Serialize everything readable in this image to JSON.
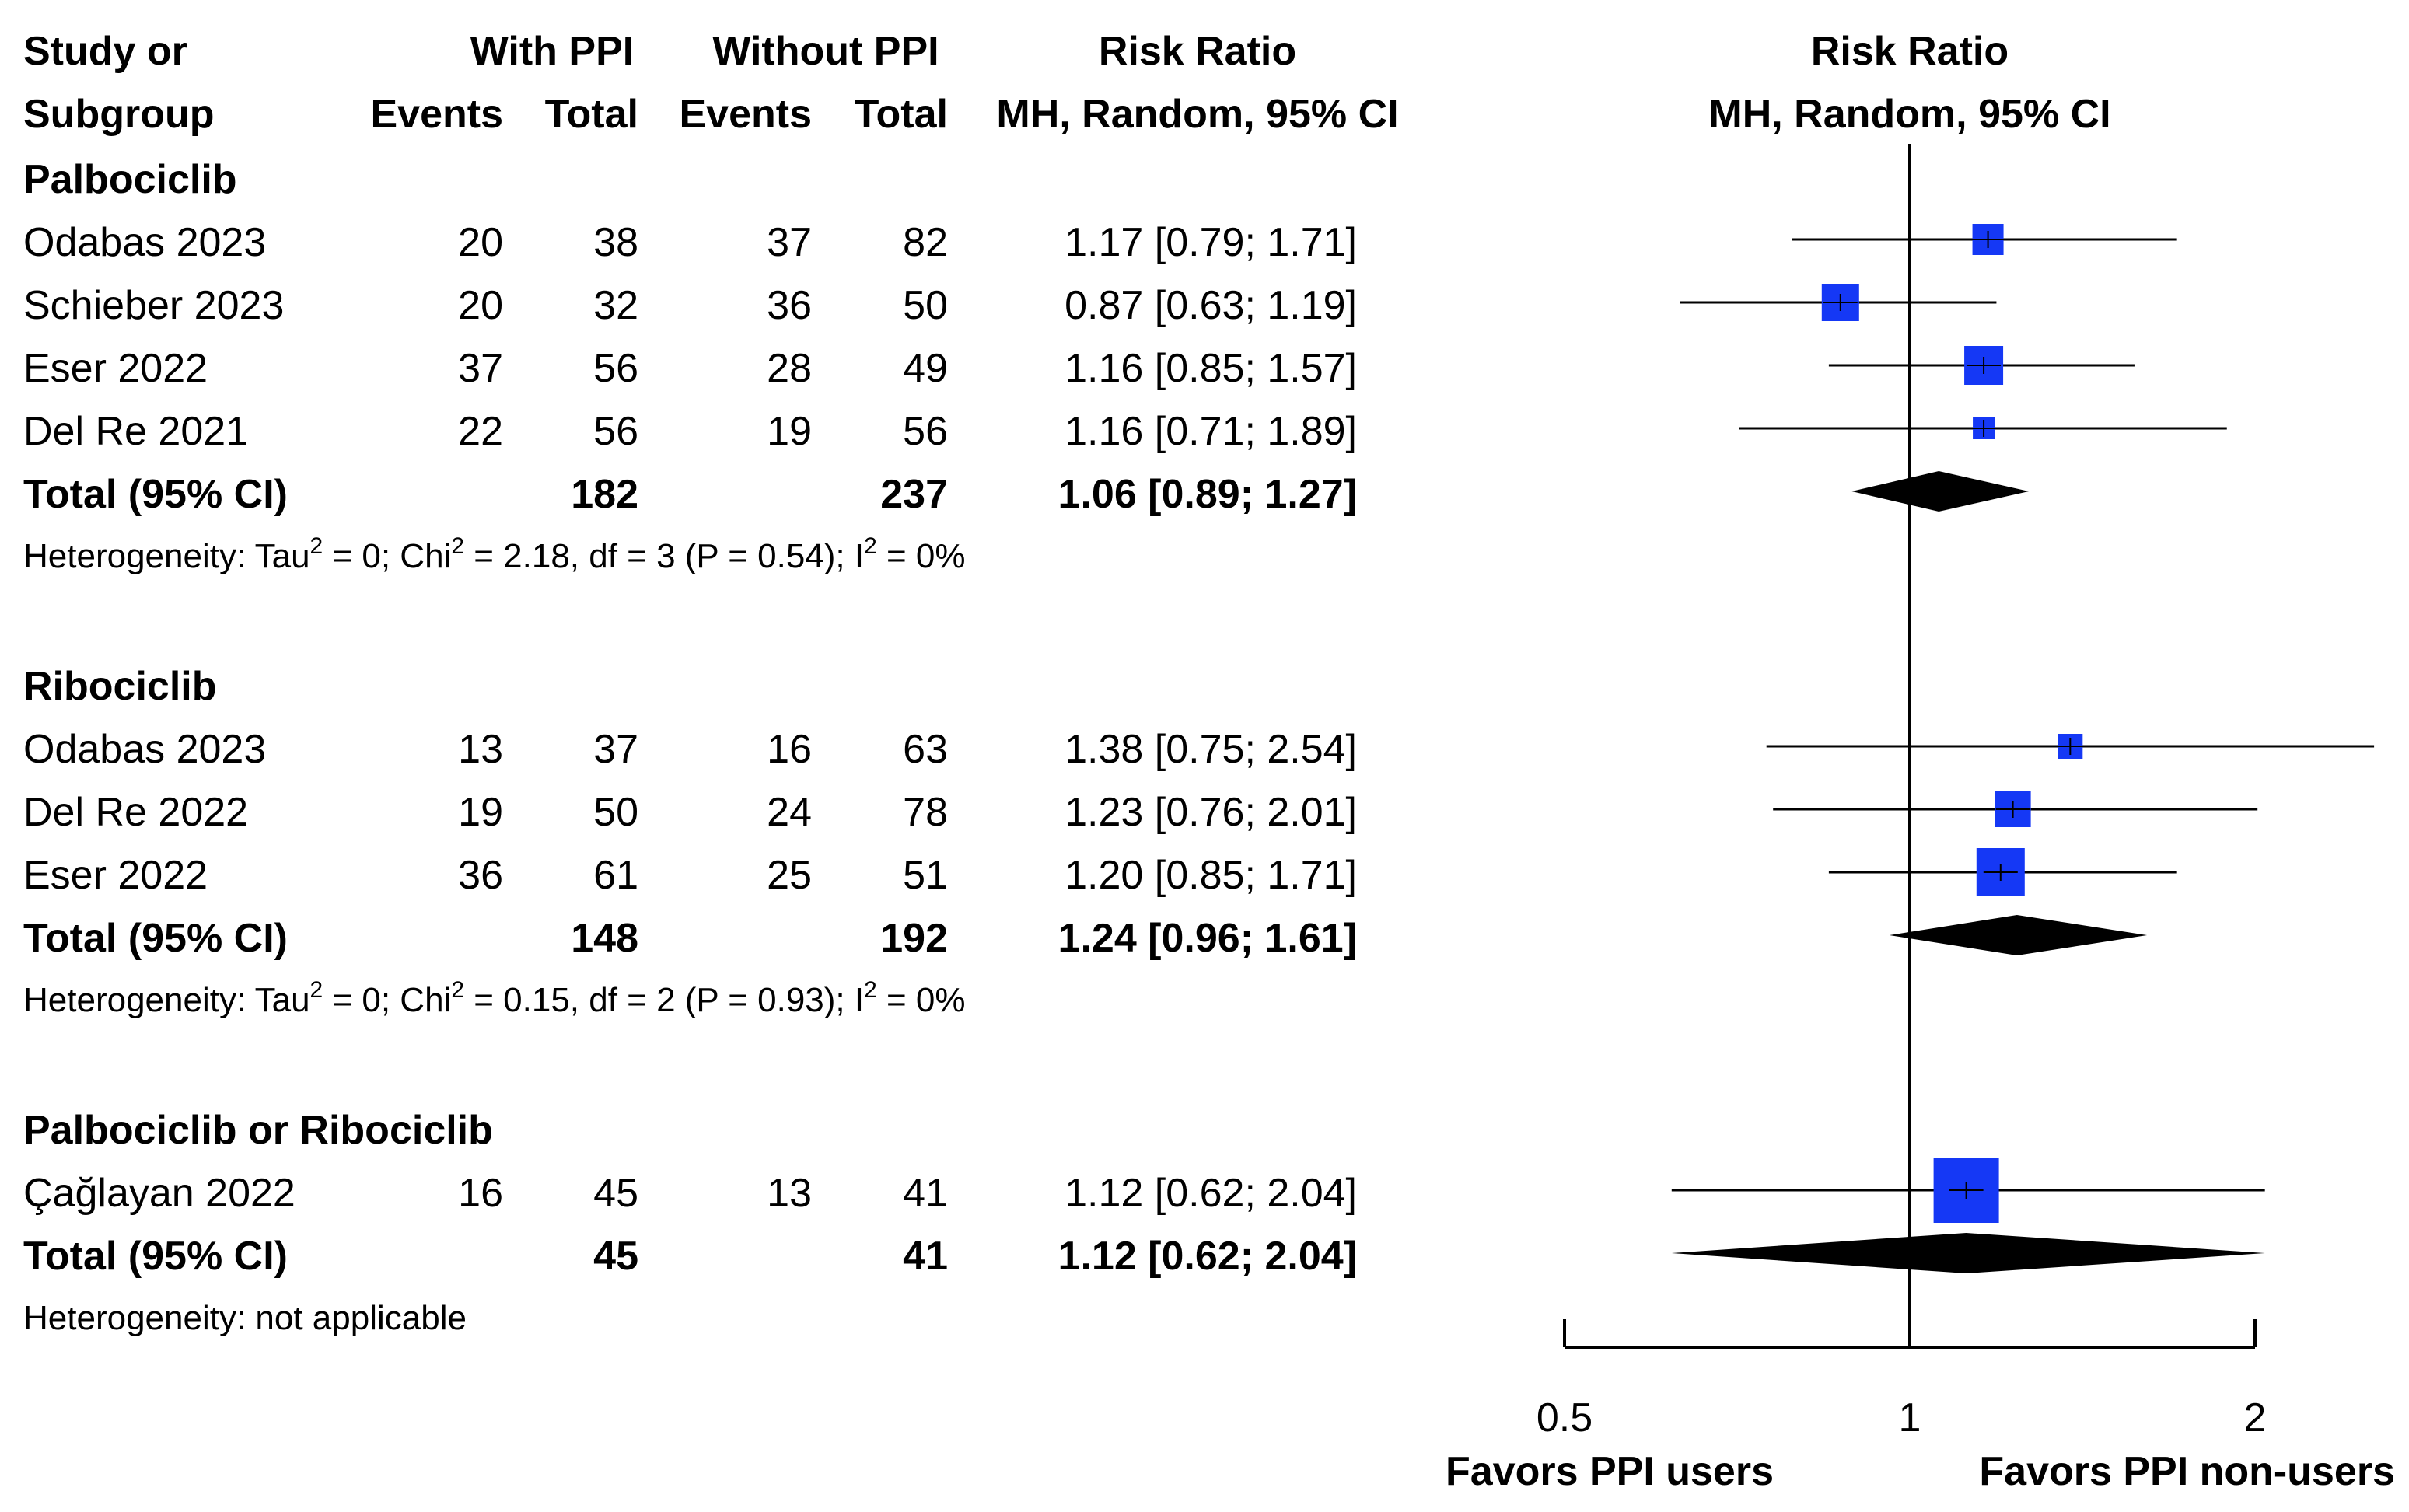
{
  "header": {
    "study_line1": "Study or",
    "study_line2": "Subgroup",
    "with_ppi": "With PPI",
    "without_ppi": "Without PPI",
    "events": "Events",
    "total": "Total",
    "rr_title": "Risk Ratio",
    "rr_method": "MH, Random, 95% CI",
    "plot_title": "Risk Ratio",
    "plot_method": "MH, Random, 95% CI"
  },
  "colors": {
    "square": "#1538f5",
    "diamond": "#000000",
    "line": "#000000"
  },
  "chart_data": {
    "type": "forest",
    "effect_measure": "Risk Ratio",
    "method": "MH, Random, 95% CI",
    "x_scale": "log",
    "xlim": [
      0.5,
      2
    ],
    "x_ticks": [
      0.5,
      1,
      2
    ],
    "x_tick_labels": [
      "0.5",
      "1",
      "2"
    ],
    "reference_line": 1,
    "favors_left": "Favors PPI users",
    "favors_right": "Favors PPI non-users",
    "groups": [
      {
        "name": "Palbociclib",
        "studies": [
          {
            "study": "Odabas 2023",
            "e1": "20",
            "n1": "38",
            "e2": "37",
            "n2": "82",
            "rr_text": "1.17 [0.79; 1.71]",
            "rr": 1.17,
            "lo": 0.79,
            "hi": 1.71,
            "weight": 1.0
          },
          {
            "study": "Schieber 2023",
            "e1": "20",
            "n1": "32",
            "e2": "36",
            "n2": "50",
            "rr_text": "0.87 [0.63; 1.19]",
            "rr": 0.87,
            "lo": 0.63,
            "hi": 1.19,
            "weight": 1.2
          },
          {
            "study": "Eser 2022",
            "e1": "37",
            "n1": "56",
            "e2": "28",
            "n2": "49",
            "rr_text": "1.16 [0.85; 1.57]",
            "rr": 1.16,
            "lo": 0.85,
            "hi": 1.57,
            "weight": 1.25
          },
          {
            "study": "Del Re 2021",
            "e1": "22",
            "n1": "56",
            "e2": "19",
            "n2": "56",
            "rr_text": "1.16 [0.71; 1.89]",
            "rr": 1.16,
            "lo": 0.71,
            "hi": 1.89,
            "weight": 0.7
          }
        ],
        "total": {
          "label": "Total (95% CI)",
          "n1": "182",
          "n2": "237",
          "rr_text": "1.06 [0.89; 1.27]",
          "rr": 1.06,
          "lo": 0.89,
          "hi": 1.27
        },
        "heterogeneity": {
          "prefix": "Heterogeneity: Tau",
          "tau_exp": "2",
          "mid1": " = 0; Chi",
          "chi_exp": "2",
          "mid2": " = 2.18, df = 3 (P = 0.54); I",
          "i_exp": "2",
          "suffix": " = 0%"
        }
      },
      {
        "name": "Ribociclib",
        "studies": [
          {
            "study": "Odabas 2023",
            "e1": "13",
            "n1": "37",
            "e2": "16",
            "n2": "63",
            "rr_text": "1.38 [0.75; 2.54]",
            "rr": 1.38,
            "lo": 0.75,
            "hi": 2.54,
            "weight": 0.8
          },
          {
            "study": "Del Re 2022",
            "e1": "19",
            "n1": "50",
            "e2": "24",
            "n2": "78",
            "rr_text": "1.23 [0.76; 2.01]",
            "rr": 1.23,
            "lo": 0.76,
            "hi": 2.01,
            "weight": 1.15
          },
          {
            "study": "Eser 2022",
            "e1": "36",
            "n1": "61",
            "e2": "25",
            "n2": "51",
            "rr_text": "1.20 [0.85; 1.71]",
            "rr": 1.2,
            "lo": 0.85,
            "hi": 1.71,
            "weight": 1.55
          }
        ],
        "total": {
          "label": "Total (95% CI)",
          "n1": "148",
          "n2": "192",
          "rr_text": "1.24 [0.96; 1.61]",
          "rr": 1.24,
          "lo": 0.96,
          "hi": 1.61
        },
        "heterogeneity": {
          "prefix": "Heterogeneity: Tau",
          "tau_exp": "2",
          "mid1": " = 0; Chi",
          "chi_exp": "2",
          "mid2": " = 0.15, df = 2 (P = 0.93); I",
          "i_exp": "2",
          "suffix": " = 0%"
        }
      },
      {
        "name": "Palbociclib or Ribociclib",
        "studies": [
          {
            "study": "Çağlayan  2022",
            "e1": "16",
            "n1": "45",
            "e2": "13",
            "n2": "41",
            "rr_text": "1.12 [0.62; 2.04]",
            "rr": 1.12,
            "lo": 0.62,
            "hi": 2.04,
            "weight": 2.1
          }
        ],
        "total": {
          "label": "Total (95% CI)",
          "n1": "45",
          "n2": "41",
          "rr_text": "1.12 [0.62; 2.04]",
          "rr": 1.12,
          "lo": 0.62,
          "hi": 2.04
        },
        "heterogeneity": {
          "text": "Heterogeneity: not applicable"
        }
      }
    ]
  }
}
